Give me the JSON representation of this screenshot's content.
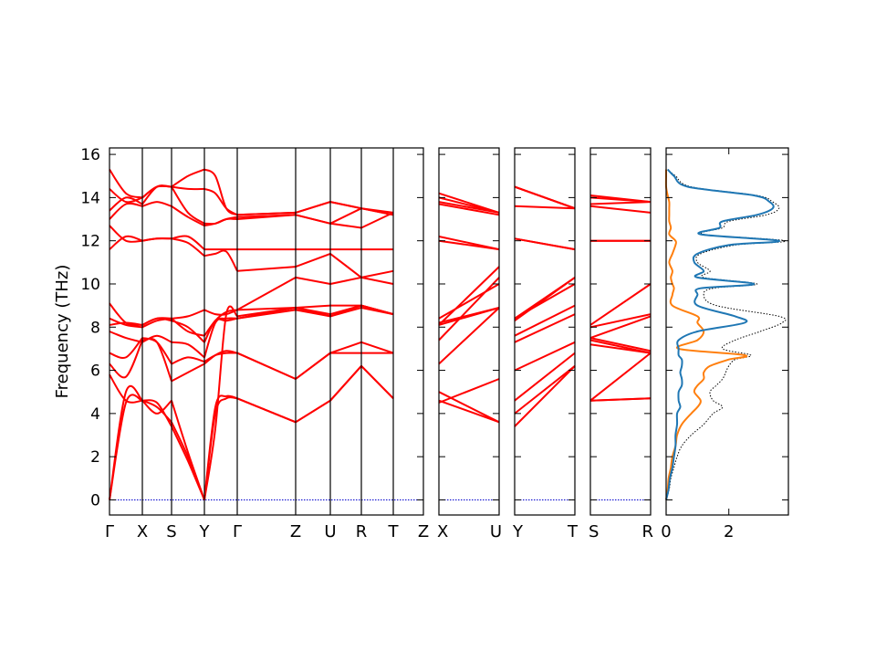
{
  "chart_data": {
    "type": "line",
    "title": "",
    "ylabel": "Frequency (THz)",
    "ylim": [
      -0.7,
      16.3
    ],
    "yticks": [
      0,
      2,
      4,
      6,
      8,
      10,
      12,
      14,
      16
    ],
    "colors": {
      "bands": "#ff0000",
      "zero_line": "#0000cc",
      "dos_total": "#000000",
      "dos_a": "#1f77b4",
      "dos_b": "#ff7f0e"
    },
    "panels": [
      {
        "ticks": [
          "Γ",
          "X",
          "S",
          "Y",
          "Γ",
          "Z",
          "U",
          "R",
          "T",
          "Z"
        ],
        "segments": [
          {
            "bands": [
              [
                0,
                4.5,
                4.6
              ],
              [
                0,
                5.0,
                4.6
              ],
              [
                5.8,
                4.6,
                4.6
              ],
              [
                6.3,
                5.7,
                7.4
              ],
              [
                6.8,
                6.6,
                7.5
              ],
              [
                7.8,
                7.5,
                7.3
              ],
              [
                8.1,
                8.2,
                8.1
              ],
              [
                8.4,
                8.1,
                8.0
              ],
              [
                9.1,
                8.2,
                8.1
              ],
              [
                11.6,
                12.2,
                12.0
              ],
              [
                12.7,
                12.0,
                12.0
              ],
              [
                13.0,
                13.7,
                13.6
              ],
              [
                13.4,
                14.0,
                13.7
              ],
              [
                14.4,
                13.8,
                14.0
              ],
              [
                15.3,
                14.2,
                14.0
              ]
            ]
          },
          {
            "bands": [
              [
                4.6,
                4.5,
                3.4
              ],
              [
                4.6,
                4.3,
                3.6
              ],
              [
                4.6,
                4.0,
                4.6
              ],
              [
                7.4,
                7.3,
                5.5
              ],
              [
                7.5,
                7.3,
                6.3
              ],
              [
                7.3,
                7.6,
                7.3
              ],
              [
                8.1,
                8.4,
                8.3
              ],
              [
                8.0,
                8.3,
                8.4
              ],
              [
                8.1,
                8.4,
                8.4
              ],
              [
                12.0,
                12.1,
                12.1
              ],
              [
                12.0,
                12.1,
                12.1
              ],
              [
                13.6,
                13.8,
                13.6
              ],
              [
                13.7,
                14.5,
                14.5
              ],
              [
                14.0,
                14.5,
                14.5
              ],
              [
                14.0,
                14.5,
                14.5
              ]
            ]
          },
          {
            "bands": [
              [
                3.4,
                1.8,
                0
              ],
              [
                3.6,
                2.0,
                0
              ],
              [
                4.6,
                2.2,
                0
              ],
              [
                5.5,
                5.9,
                6.3
              ],
              [
                6.3,
                6.6,
                6.4
              ],
              [
                7.3,
                7.2,
                6.6
              ],
              [
                8.3,
                8.0,
                7.3
              ],
              [
                8.4,
                7.8,
                7.6
              ],
              [
                8.4,
                8.5,
                8.8
              ],
              [
                12.1,
                11.9,
                11.3
              ],
              [
                12.1,
                12.2,
                11.6
              ],
              [
                13.6,
                13.1,
                12.7
              ],
              [
                14.5,
                13.3,
                12.8
              ],
              [
                14.5,
                14.4,
                14.4
              ],
              [
                14.5,
                15.0,
                15.3
              ]
            ]
          },
          {
            "bands": [
              [
                0,
                4.3,
                4.8,
                4.7
              ],
              [
                0,
                4.0,
                4.7,
                4.7
              ],
              [
                0,
                3.3,
                8.6,
                8.5
              ],
              [
                6.3,
                6.7,
                6.9,
                6.8
              ],
              [
                6.4,
                6.7,
                6.8,
                6.8
              ],
              [
                6.6,
                8.2,
                8.4,
                8.4
              ],
              [
                7.3,
                8.3,
                8.3,
                8.4
              ],
              [
                7.6,
                8.3,
                8.7,
                8.8
              ],
              [
                8.8,
                8.6,
                8.6,
                8.8
              ],
              [
                11.3,
                11.4,
                11.5,
                10.6
              ],
              [
                11.6,
                11.6,
                11.6,
                11.6
              ],
              [
                12.7,
                12.8,
                13.0,
                13.0
              ],
              [
                12.8,
                12.8,
                13.0,
                13.1
              ],
              [
                14.4,
                14.2,
                13.5,
                13.2
              ],
              [
                15.3,
                15.0,
                13.5,
                13.2
              ]
            ]
          },
          {
            "bands": [
              [
                4.7,
                3.6
              ],
              [
                4.7,
                3.6
              ],
              [
                8.5,
                8.9
              ],
              [
                6.8,
                5.6
              ],
              [
                6.8,
                5.6
              ],
              [
                8.4,
                8.8
              ],
              [
                8.4,
                8.9
              ],
              [
                8.8,
                8.9
              ],
              [
                8.8,
                10.3
              ],
              [
                10.6,
                10.8
              ],
              [
                11.6,
                11.6
              ],
              [
                13.0,
                13.2
              ],
              [
                13.1,
                13.2
              ],
              [
                13.2,
                13.3
              ],
              [
                13.2,
                13.3
              ]
            ]
          },
          {
            "bands": [
              [
                3.6,
                4.6
              ],
              [
                3.6,
                4.6
              ],
              [
                8.9,
                8.5
              ],
              [
                5.6,
                6.8
              ],
              [
                5.6,
                6.8
              ],
              [
                8.8,
                8.5
              ],
              [
                8.9,
                8.6
              ],
              [
                8.9,
                9.0
              ],
              [
                10.3,
                10.0
              ],
              [
                10.8,
                11.4
              ],
              [
                11.6,
                11.6
              ],
              [
                13.2,
                12.8
              ],
              [
                13.2,
                12.8
              ],
              [
                13.3,
                13.8
              ],
              [
                13.3,
                13.8
              ]
            ]
          },
          {
            "bands": [
              [
                4.6,
                6.2
              ],
              [
                4.6,
                6.2
              ],
              [
                8.5,
                9.0
              ],
              [
                6.8,
                6.8
              ],
              [
                6.8,
                7.3
              ],
              [
                8.5,
                8.9
              ],
              [
                8.6,
                9.0
              ],
              [
                9.0,
                9.0
              ],
              [
                10.0,
                10.3
              ],
              [
                11.4,
                10.3
              ],
              [
                11.6,
                11.6
              ],
              [
                12.8,
                12.6
              ],
              [
                12.8,
                13.5
              ],
              [
                13.8,
                13.5
              ],
              [
                13.8,
                13.5
              ]
            ]
          },
          {
            "bands": [
              [
                6.2,
                4.7
              ],
              [
                6.2,
                4.7
              ],
              [
                9.0,
                8.6
              ],
              [
                6.8,
                6.8
              ],
              [
                7.3,
                6.8
              ],
              [
                8.9,
                8.6
              ],
              [
                9.0,
                8.6
              ],
              [
                9.0,
                8.6
              ],
              [
                10.3,
                10.0
              ],
              [
                10.3,
                10.6
              ],
              [
                11.6,
                11.6
              ],
              [
                12.6,
                13.3
              ],
              [
                13.5,
                13.3
              ],
              [
                13.5,
                13.2
              ],
              [
                13.5,
                13.2
              ]
            ]
          }
        ]
      },
      {
        "ticks": [
          "X",
          "U"
        ],
        "segments": [
          {
            "bands": [
              [
                4.5,
                5.6
              ],
              [
                4.6,
                3.6
              ],
              [
                5.0,
                3.6
              ],
              [
                6.3,
                8.9
              ],
              [
                7.4,
                10.3
              ],
              [
                8.1,
                10.8
              ],
              [
                8.2,
                8.9
              ],
              [
                8.4,
                10.0
              ],
              [
                8.1,
                8.9
              ],
              [
                12.2,
                11.6
              ],
              [
                12.0,
                11.6
              ],
              [
                13.7,
                13.2
              ],
              [
                14.0,
                13.3
              ],
              [
                13.8,
                13.3
              ],
              [
                14.2,
                13.3
              ]
            ]
          }
        ]
      },
      {
        "ticks": [
          "Y",
          "T"
        ],
        "segments": [
          {
            "bands": [
              [
                3.4,
                6.2
              ],
              [
                4.0,
                6.2
              ],
              [
                4.6,
                6.8
              ],
              [
                6.0,
                7.3
              ],
              [
                7.3,
                8.6
              ],
              [
                7.6,
                9.0
              ],
              [
                8.3,
                10.3
              ],
              [
                8.4,
                10.3
              ],
              [
                8.4,
                10.0
              ],
              [
                12.1,
                11.6
              ],
              [
                12.1,
                11.6
              ],
              [
                13.6,
                13.5
              ],
              [
                14.5,
                13.5
              ],
              [
                14.5,
                13.5
              ],
              [
                14.5,
                13.5
              ]
            ]
          }
        ]
      },
      {
        "ticks": [
          "S",
          "R"
        ],
        "segments": [
          {
            "bands": [
              [
                4.6,
                4.7
              ],
              [
                4.6,
                4.7
              ],
              [
                4.6,
                6.8
              ],
              [
                7.2,
                6.8
              ],
              [
                7.4,
                6.8
              ],
              [
                7.5,
                6.9
              ],
              [
                7.5,
                8.5
              ],
              [
                8.0,
                8.6
              ],
              [
                8.1,
                10.0
              ],
              [
                12.0,
                12.0
              ],
              [
                12.0,
                12.0
              ],
              [
                13.6,
                13.3
              ],
              [
                13.7,
                13.8
              ],
              [
                14.0,
                13.8
              ],
              [
                14.1,
                13.8
              ]
            ]
          }
        ]
      }
    ],
    "dos": {
      "xlim": [
        0,
        3.9
      ],
      "xticks": [
        0,
        2
      ],
      "freq": [
        0.0,
        0.5,
        1.0,
        1.5,
        2.0,
        2.5,
        3.0,
        3.5,
        4.0,
        4.3,
        4.6,
        5.0,
        5.3,
        5.6,
        5.9,
        6.2,
        6.5,
        6.7,
        7.0,
        7.4,
        7.8,
        8.2,
        8.5,
        9.0,
        9.5,
        9.8,
        10.0,
        10.3,
        10.6,
        11.0,
        11.4,
        11.8,
        12.0,
        12.3,
        12.6,
        12.9,
        13.2,
        13.5,
        13.8,
        14.1,
        14.5,
        15.0,
        15.3
      ],
      "total": [
        0.0,
        0.1,
        0.15,
        0.25,
        0.35,
        0.5,
        0.8,
        1.2,
        1.5,
        1.8,
        1.5,
        1.4,
        1.6,
        1.8,
        1.9,
        2.0,
        2.2,
        2.7,
        1.8,
        2.2,
        3.0,
        3.7,
        3.6,
        1.6,
        1.2,
        1.5,
        2.9,
        1.2,
        1.4,
        1.0,
        1.1,
        2.2,
        3.8,
        1.2,
        1.8,
        2.0,
        3.2,
        3.6,
        3.4,
        2.9,
        0.8,
        0.3,
        0.05
      ],
      "series_a": [
        0.0,
        0.08,
        0.12,
        0.2,
        0.25,
        0.3,
        0.3,
        0.35,
        0.35,
        0.45,
        0.4,
        0.4,
        0.5,
        0.5,
        0.45,
        0.5,
        0.5,
        0.4,
        0.4,
        0.4,
        1.0,
        2.5,
        2.2,
        1.0,
        1.0,
        1.1,
        2.8,
        1.0,
        1.2,
        0.9,
        1.0,
        2.0,
        3.6,
        1.1,
        1.7,
        1.8,
        2.9,
        3.4,
        3.3,
        2.8,
        0.7,
        0.25,
        0.05
      ],
      "series_b": [
        0.0,
        0.05,
        0.08,
        0.15,
        0.2,
        0.3,
        0.35,
        0.5,
        0.8,
        1.0,
        1.1,
        0.9,
        1.0,
        1.2,
        1.2,
        1.4,
        2.0,
        2.5,
        0.4,
        1.0,
        1.2,
        1.0,
        1.0,
        0.2,
        0.2,
        0.25,
        0.2,
        0.15,
        0.2,
        0.1,
        0.2,
        0.3,
        0.3,
        0.1,
        0.15,
        0.1,
        0.1,
        0.1,
        0.1,
        0.05,
        0.0,
        0.0,
        0.0
      ]
    }
  }
}
